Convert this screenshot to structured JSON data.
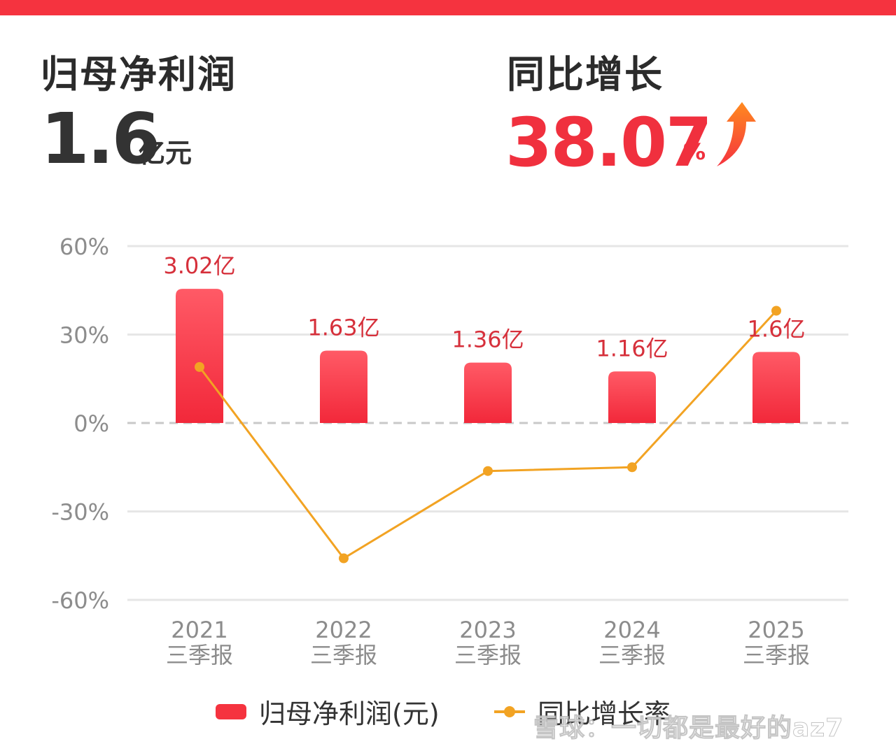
{
  "kpi": {
    "left_title": "归母净利润",
    "left_value": "1.6",
    "left_unit": "亿元",
    "right_title": "同比增长",
    "right_value": "38.07",
    "right_unit": "%"
  },
  "colors": {
    "accent": "#f5333f",
    "bar": "#f5333f",
    "line": "#f2a323",
    "label": "#d6303b",
    "grid": "#e6e6e6",
    "axis_text": "#8c8c8c"
  },
  "icons": [
    "up-arrow-icon"
  ],
  "legend": {
    "bar_label": "归母净利润(元)",
    "line_label": "同比增长率"
  },
  "watermark": "雪球：一切都是最好的az7",
  "chart_data": {
    "type": "bar",
    "categories": [
      "2021\n三季报",
      "2022\n三季报",
      "2023\n三季报",
      "2024\n三季报",
      "2025\n三季报"
    ],
    "category_years": [
      "2021",
      "2022",
      "2023",
      "2024",
      "2025"
    ],
    "category_suffix": "三季报",
    "y_ticks": [
      "60%",
      "30%",
      "0%",
      "-30%",
      "-60%"
    ],
    "ylim": [
      -60,
      60
    ],
    "grid": true,
    "legend_position": "bottom",
    "series": [
      {
        "name": "归母净利润(元)",
        "type": "bar",
        "values": [
          3.02,
          1.63,
          1.36,
          1.16,
          1.6
        ],
        "labels": [
          "3.02亿",
          "1.63亿",
          "1.36亿",
          "1.16亿",
          "1.6亿"
        ]
      },
      {
        "name": "同比增长率",
        "type": "line",
        "values": [
          19,
          -45.9,
          -16.3,
          -15,
          38.07
        ]
      }
    ]
  }
}
